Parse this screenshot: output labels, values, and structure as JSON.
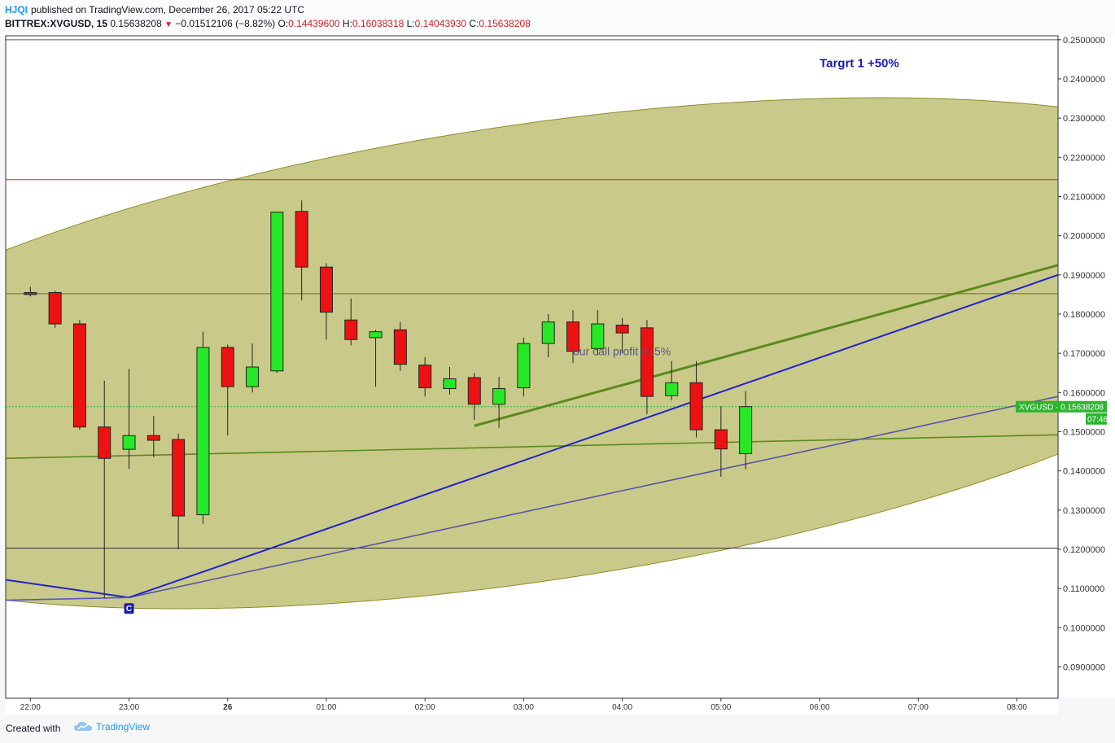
{
  "header": {
    "user": "HJQI",
    "published_text": "published on TradingView.com, December 26, 2017 05:22 UTC",
    "symbol": "BITTREX:XVGUSD, 15",
    "last": "0.15638208",
    "change": "−0.01512106 (−8.82%)",
    "o_label": "O:",
    "o_value": "0.14439600",
    "h_label": "H:",
    "h_value": "0.16038318",
    "l_label": "L:",
    "l_value": "0.14043930",
    "c_label": "C:",
    "c_value": "0.15638208"
  },
  "footer": {
    "created_with": "Created with",
    "brand": "TradingView"
  },
  "colors": {
    "up": "#26e826",
    "down": "#ee1111",
    "ellipse_fill": "#c9ca89",
    "ellipse_stroke": "#8c8c2a",
    "green_line": "#5a8a1e",
    "blue_line": "#2222cc",
    "purple_line": "#5555aa",
    "price_line": "#2db52d",
    "resistance_red": "#c0392b"
  },
  "chart_data": {
    "type": "candlestick",
    "symbol": "XVGUSD",
    "interval_minutes": 15,
    "ylim": [
      0.082,
      0.251
    ],
    "y_ticks": [
      "0.2500000",
      "0.2400000",
      "0.2300000",
      "0.2200000",
      "0.2100000",
      "0.2000000",
      "0.1900000",
      "0.1800000",
      "0.1700000",
      "0.1600000",
      "0.1500000",
      "0.1400000",
      "0.1300000",
      "0.1200000",
      "0.1100000",
      "0.1000000",
      "0.0900000"
    ],
    "x_ticks": [
      "22:00",
      "23:00",
      "26",
      "01:00",
      "02:00",
      "03:00",
      "04:00",
      "05:00",
      "06:00",
      "07:00",
      "08:00"
    ],
    "x_tick_times": [
      "2017-12-25 22:00",
      "2017-12-25 23:00",
      "2017-12-26 00:00",
      "2017-12-26 01:00",
      "2017-12-26 02:00",
      "2017-12-26 03:00",
      "2017-12-26 04:00",
      "2017-12-26 05:00",
      "2017-12-26 06:00",
      "2017-12-26 07:00",
      "2017-12-26 08:00"
    ],
    "xlim": [
      "2017-12-25 21:45",
      "2017-12-26 08:25"
    ],
    "candles": [
      {
        "t": "2017-12-25 22:00",
        "o": 0.1855,
        "h": 0.187,
        "l": 0.1845,
        "c": 0.185
      },
      {
        "t": "2017-12-25 22:15",
        "o": 0.1855,
        "h": 0.186,
        "l": 0.1765,
        "c": 0.1775
      },
      {
        "t": "2017-12-25 22:30",
        "o": 0.1775,
        "h": 0.1785,
        "l": 0.1505,
        "c": 0.1512
      },
      {
        "t": "2017-12-25 22:45",
        "o": 0.1512,
        "h": 0.163,
        "l": 0.1075,
        "c": 0.1432
      },
      {
        "t": "2017-12-25 23:00",
        "o": 0.1455,
        "h": 0.166,
        "l": 0.1405,
        "c": 0.149
      },
      {
        "t": "2017-12-25 23:15",
        "o": 0.149,
        "h": 0.154,
        "l": 0.1435,
        "c": 0.1478
      },
      {
        "t": "2017-12-25 23:30",
        "o": 0.148,
        "h": 0.1495,
        "l": 0.12,
        "c": 0.1285
      },
      {
        "t": "2017-12-25 23:45",
        "o": 0.1288,
        "h": 0.1755,
        "l": 0.1265,
        "c": 0.1715
      },
      {
        "t": "2017-12-26 00:00",
        "o": 0.1715,
        "h": 0.1722,
        "l": 0.149,
        "c": 0.1615
      },
      {
        "t": "2017-12-26 00:15",
        "o": 0.1615,
        "h": 0.1725,
        "l": 0.16,
        "c": 0.1665
      },
      {
        "t": "2017-12-26 00:30",
        "o": 0.1655,
        "h": 0.206,
        "l": 0.165,
        "c": 0.206
      },
      {
        "t": "2017-12-26 00:45",
        "o": 0.2062,
        "h": 0.209,
        "l": 0.1835,
        "c": 0.192
      },
      {
        "t": "2017-12-26 01:00",
        "o": 0.192,
        "h": 0.193,
        "l": 0.1735,
        "c": 0.1805
      },
      {
        "t": "2017-12-26 01:15",
        "o": 0.1785,
        "h": 0.184,
        "l": 0.172,
        "c": 0.1735
      },
      {
        "t": "2017-12-26 01:30",
        "o": 0.174,
        "h": 0.176,
        "l": 0.1615,
        "c": 0.1755
      },
      {
        "t": "2017-12-26 01:45",
        "o": 0.176,
        "h": 0.178,
        "l": 0.1655,
        "c": 0.1672
      },
      {
        "t": "2017-12-26 02:00",
        "o": 0.167,
        "h": 0.169,
        "l": 0.159,
        "c": 0.1612
      },
      {
        "t": "2017-12-26 02:15",
        "o": 0.161,
        "h": 0.1665,
        "l": 0.1595,
        "c": 0.1635
      },
      {
        "t": "2017-12-26 02:30",
        "o": 0.1638,
        "h": 0.165,
        "l": 0.153,
        "c": 0.157
      },
      {
        "t": "2017-12-26 02:45",
        "o": 0.157,
        "h": 0.164,
        "l": 0.151,
        "c": 0.161
      },
      {
        "t": "2017-12-26 03:00",
        "o": 0.1612,
        "h": 0.174,
        "l": 0.159,
        "c": 0.1725
      },
      {
        "t": "2017-12-26 03:15",
        "o": 0.1725,
        "h": 0.18,
        "l": 0.169,
        "c": 0.178
      },
      {
        "t": "2017-12-26 03:30",
        "o": 0.178,
        "h": 0.181,
        "l": 0.1675,
        "c": 0.1705
      },
      {
        "t": "2017-12-26 03:45",
        "o": 0.1712,
        "h": 0.181,
        "l": 0.1695,
        "c": 0.1775
      },
      {
        "t": "2017-12-26 04:00",
        "o": 0.1772,
        "h": 0.179,
        "l": 0.17,
        "c": 0.1752
      },
      {
        "t": "2017-12-26 04:15",
        "o": 0.1765,
        "h": 0.1785,
        "l": 0.1545,
        "c": 0.159
      },
      {
        "t": "2017-12-26 04:30",
        "o": 0.1592,
        "h": 0.168,
        "l": 0.158,
        "c": 0.1625
      },
      {
        "t": "2017-12-26 04:45",
        "o": 0.1625,
        "h": 0.168,
        "l": 0.1485,
        "c": 0.1505
      },
      {
        "t": "2017-12-26 05:00",
        "o": 0.1505,
        "h": 0.1565,
        "l": 0.1385,
        "c": 0.1456
      },
      {
        "t": "2017-12-26 05:15",
        "o": 0.1444,
        "h": 0.1604,
        "l": 0.1404,
        "c": 0.1564
      }
    ],
    "horizontal_lines": [
      {
        "y": 0.2143,
        "color": "#c0392b"
      },
      {
        "y": 0.1852,
        "color": "#6b6b2a"
      },
      {
        "y": 0.1203,
        "color": "#333333"
      },
      {
        "y": 0.25,
        "color": "#555555"
      },
      {
        "y": 0.15638208,
        "color": "#2db52d",
        "style": "dotted"
      }
    ],
    "trend_lines": [
      {
        "name": "green-upper",
        "from": {
          "t": "2017-12-26 02:30",
          "y": 0.1515
        },
        "to": {
          "t": "2017-12-26 08:25",
          "y": 0.1925
        },
        "color": "#5a8a1e"
      },
      {
        "name": "green-flat",
        "from": {
          "t": "2017-12-25 21:45",
          "y": 0.1432
        },
        "to": {
          "t": "2017-12-26 08:25",
          "y": 0.1492
        },
        "color": "#5a8a1e"
      },
      {
        "name": "purple-support",
        "from": {
          "t": "2017-12-25 23:00",
          "y": 0.1077
        },
        "to": {
          "t": "2017-12-26 08:25",
          "y": 0.159
        },
        "color": "#5555aa"
      },
      {
        "name": "blue-lower",
        "from": {
          "t": "2017-12-25 21:45",
          "y": 0.1122
        },
        "to": {
          "t": "2017-12-25 23:00",
          "y": 0.1077
        },
        "color": "#2222cc"
      },
      {
        "name": "blue-upper",
        "from": {
          "t": "2017-12-25 23:00",
          "y": 0.1077
        },
        "to": {
          "t": "2017-12-26 08:25",
          "y": 0.19
        },
        "color": "#2222cc"
      },
      {
        "name": "thin-blue",
        "from": {
          "t": "2017-12-25 21:45",
          "y": 0.107
        },
        "to": {
          "t": "2017-12-25 23:00",
          "y": 0.1077
        },
        "color": "#5555cc"
      }
    ],
    "annotations": [
      {
        "text": "Targrt 1 +50%",
        "t": "2017-12-26 06:00",
        "y": 0.243,
        "color": "#1a1ab0"
      },
      {
        "text": "our call profit +15%",
        "t": "2017-12-26 03:30",
        "y": 0.1695,
        "color": "#555588"
      }
    ],
    "marker": {
      "label": "C",
      "t": "2017-12-25 23:00",
      "y": 0.105
    },
    "price_label": {
      "symbol": "XVGUSD",
      "value": "0.15638208",
      "countdown": "07:46"
    }
  }
}
